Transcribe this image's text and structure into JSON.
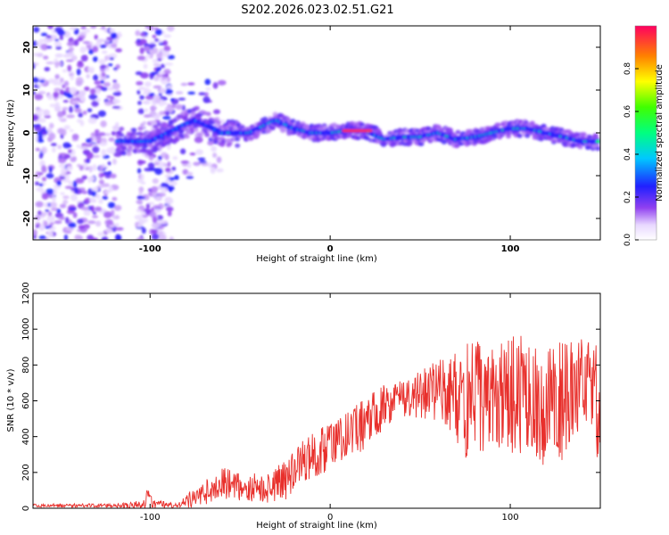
{
  "title": "S202.2026.023.02.51.G21",
  "chart_data": [
    {
      "type": "heatmap",
      "name": "spectrogram",
      "xlabel": "Height of straight line (km)",
      "ylabel": "Frequency (Hz)",
      "xlim": [
        -165,
        150
      ],
      "ylim": [
        -25,
        25
      ],
      "xticks": [
        -100,
        0,
        100
      ],
      "yticks": [
        -20,
        -10,
        0,
        10,
        20
      ],
      "colorbar": {
        "label": "Normalized spectral amplitude",
        "range": [
          0,
          1
        ],
        "ticks": [
          0.0,
          0.2,
          0.4,
          0.6,
          0.8
        ]
      },
      "ridge": {
        "description": "dominant frequency track",
        "x": [
          -115,
          -100,
          -85,
          -75,
          -60,
          -45,
          -30,
          -20,
          -10,
          0,
          10,
          20,
          30,
          40,
          50,
          60,
          70,
          80,
          90,
          100,
          110,
          120,
          130,
          140,
          148
        ],
        "freq": [
          -2,
          -2,
          1,
          3,
          0,
          0,
          3,
          1,
          0,
          0,
          0.5,
          0.5,
          -1.5,
          -1,
          -1,
          0,
          -1.5,
          -1,
          0,
          1,
          1,
          0,
          -1,
          -2,
          -2
        ]
      }
    },
    {
      "type": "line",
      "name": "snr",
      "xlabel": "Height of straight line (km)",
      "ylabel": "SNR (10 * v/v)",
      "xlim": [
        -165,
        150
      ],
      "ylim": [
        0,
        1200
      ],
      "xticks": [
        -100,
        0,
        100
      ],
      "yticks": [
        0,
        200,
        400,
        600,
        800,
        1000,
        1200
      ],
      "color": "#e8302c",
      "envelope": {
        "x": [
          -165,
          -120,
          -100,
          -85,
          -75,
          -60,
          -45,
          -35,
          -25,
          -15,
          -5,
          5,
          15,
          25,
          35,
          45,
          55,
          65,
          75,
          85,
          95,
          105,
          115,
          125,
          135,
          150
        ],
        "mean": [
          15,
          15,
          20,
          15,
          60,
          140,
          120,
          110,
          150,
          260,
          320,
          390,
          440,
          530,
          600,
          620,
          650,
          650,
          600,
          640,
          620,
          640,
          580,
          600,
          620,
          590
        ],
        "spread": [
          10,
          10,
          30,
          10,
          60,
          90,
          80,
          80,
          120,
          120,
          140,
          130,
          140,
          150,
          100,
          120,
          150,
          200,
          320,
          330,
          320,
          330,
          350,
          360,
          340,
          320
        ]
      }
    }
  ]
}
